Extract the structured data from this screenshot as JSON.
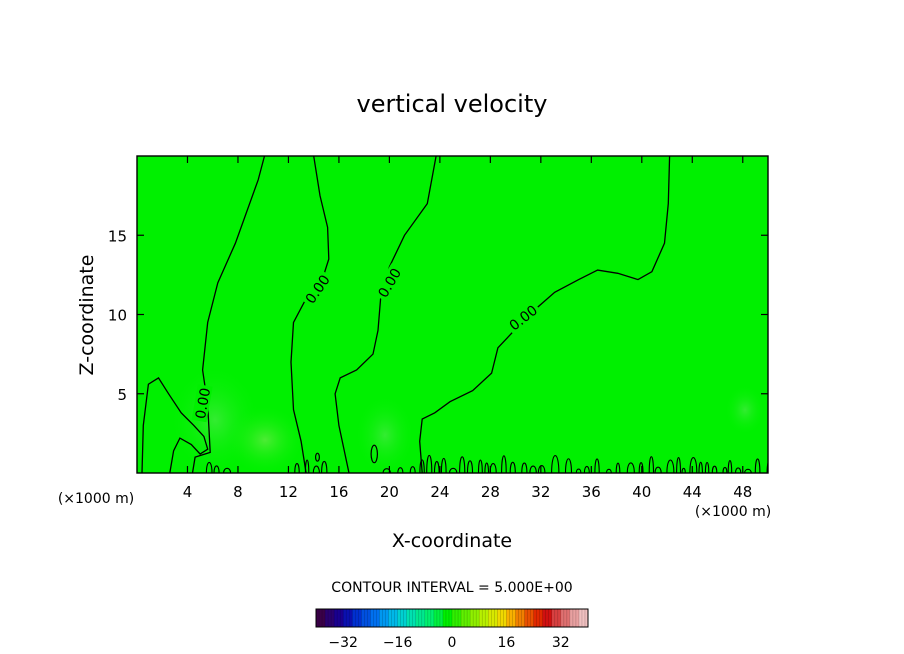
{
  "chart_data": {
    "type": "contour",
    "title": "vertical velocity",
    "xlabel": "X-coordinate",
    "ylabel": "Z-coordinate",
    "x_unit_label": "(×1000 m)",
    "xlim": [
      0,
      50
    ],
    "ylim": [
      0,
      20
    ],
    "x_ticks": [
      4,
      8,
      12,
      16,
      20,
      24,
      28,
      32,
      36,
      40,
      44,
      48
    ],
    "y_ticks": [
      5,
      10,
      15
    ],
    "field_color": "#00f000",
    "contour_level": 0.0,
    "contour_label": "0.00",
    "contour_interval_text": "CONTOUR INTERVAL = 5.000E+00",
    "colorbar": {
      "range": [
        -40,
        40
      ],
      "ticks": [
        -32,
        -16,
        0,
        16,
        32
      ],
      "tick_labels": [
        "−32",
        "−16",
        "0",
        "16",
        "32"
      ]
    },
    "zero_contours": [
      {
        "label": true,
        "label_at": [
          5.2,
          4.4
        ],
        "label_angle": -80,
        "points": [
          [
            0.4,
            0
          ],
          [
            0.5,
            3
          ],
          [
            0.9,
            5.6
          ],
          [
            1.7,
            6.0
          ],
          [
            2.5,
            5.0
          ],
          [
            3.5,
            3.8
          ],
          [
            4.5,
            3.0
          ],
          [
            5.3,
            2.3
          ],
          [
            5.6,
            1.5
          ],
          [
            5.0,
            1.2
          ],
          [
            4.3,
            1.8
          ],
          [
            3.4,
            2.2
          ],
          [
            2.9,
            1.4
          ],
          [
            2.6,
            0
          ]
        ]
      },
      {
        "label": false,
        "points": [
          [
            4.4,
            0
          ],
          [
            4.6,
            1.0
          ],
          [
            5.8,
            1.3
          ],
          [
            5.6,
            4.3
          ],
          [
            5.2,
            6.5
          ],
          [
            5.6,
            9.5
          ],
          [
            6.4,
            12
          ],
          [
            7.8,
            14.5
          ],
          [
            8.7,
            16.5
          ],
          [
            9.6,
            18.5
          ],
          [
            10.1,
            20
          ]
        ]
      },
      {
        "label": true,
        "label_at": [
          14.3,
          11.6
        ],
        "label_angle": -55,
        "points": [
          [
            13.4,
            0
          ],
          [
            13.0,
            2
          ],
          [
            12.4,
            4
          ],
          [
            12.2,
            7
          ],
          [
            12.4,
            9.5
          ],
          [
            13.4,
            11
          ],
          [
            14.6,
            12
          ],
          [
            15.2,
            13.5
          ],
          [
            15.1,
            15.5
          ],
          [
            14.5,
            17.5
          ],
          [
            14.0,
            20
          ]
        ]
      },
      {
        "label": true,
        "label_at": [
          20.0,
          12.0
        ],
        "label_angle": -60,
        "points": [
          [
            16.8,
            0
          ],
          [
            16.0,
            3
          ],
          [
            15.7,
            5
          ],
          [
            16.1,
            6
          ],
          [
            17.4,
            6.5
          ],
          [
            18.7,
            7.5
          ],
          [
            19.1,
            9
          ],
          [
            19.3,
            11
          ],
          [
            20.0,
            13
          ],
          [
            21.2,
            15
          ],
          [
            23.0,
            17
          ],
          [
            23.7,
            20
          ]
        ]
      },
      {
        "label": true,
        "label_at": [
          30.6,
          9.8
        ],
        "label_angle": -38,
        "points": [
          [
            22.6,
            0
          ],
          [
            22.4,
            2.0
          ],
          [
            22.6,
            3.4
          ],
          [
            23.6,
            3.8
          ],
          [
            24.8,
            4.5
          ],
          [
            26.6,
            5.2
          ],
          [
            28.1,
            6.3
          ],
          [
            28.6,
            7.9
          ],
          [
            29.9,
            9.0
          ],
          [
            31.8,
            10.5
          ],
          [
            33.1,
            11.4
          ],
          [
            35.0,
            12.2
          ],
          [
            36.5,
            12.8
          ],
          [
            38.1,
            12.6
          ],
          [
            39.7,
            12.2
          ],
          [
            40.8,
            12.7
          ],
          [
            41.8,
            14.5
          ],
          [
            42.1,
            17
          ],
          [
            42.2,
            20
          ]
        ]
      }
    ],
    "small_loops": [
      {
        "center": [
          18.8,
          1.2
        ],
        "rx": 0.25,
        "ry": 0.55
      },
      {
        "center": [
          14.3,
          1.0
        ],
        "rx": 0.15,
        "ry": 0.25
      }
    ]
  }
}
